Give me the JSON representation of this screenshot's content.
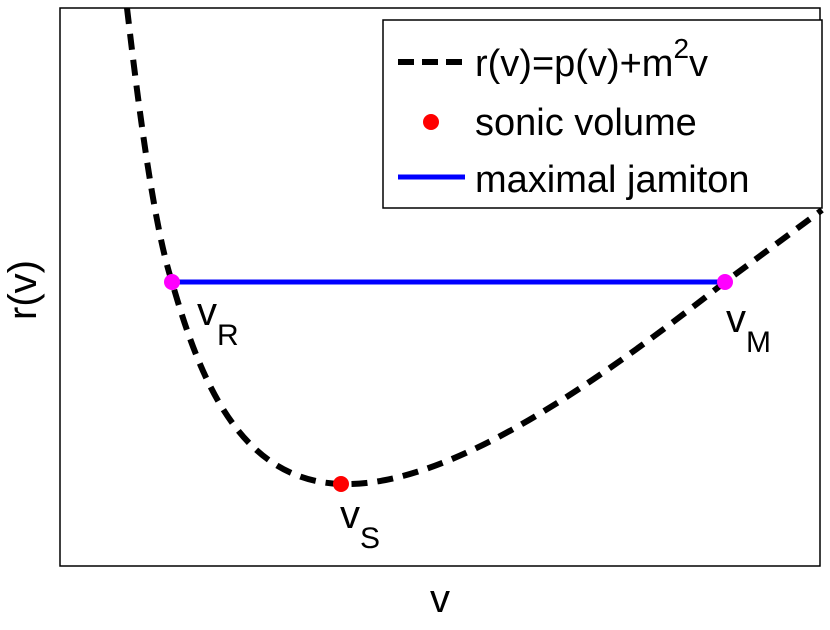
{
  "axes": {
    "x_label": "v",
    "y_label": "r(v)"
  },
  "legend": {
    "items": [
      {
        "label": "r(v)=p(v)+m",
        "sup": "2",
        "tail": "v"
      },
      {
        "label": "sonic volume"
      },
      {
        "label": "maximal jamiton"
      }
    ]
  },
  "points": [
    {
      "label": "v",
      "sub": "R"
    },
    {
      "label": "v",
      "sub": "M"
    },
    {
      "label": "v",
      "sub": "S"
    }
  ]
}
